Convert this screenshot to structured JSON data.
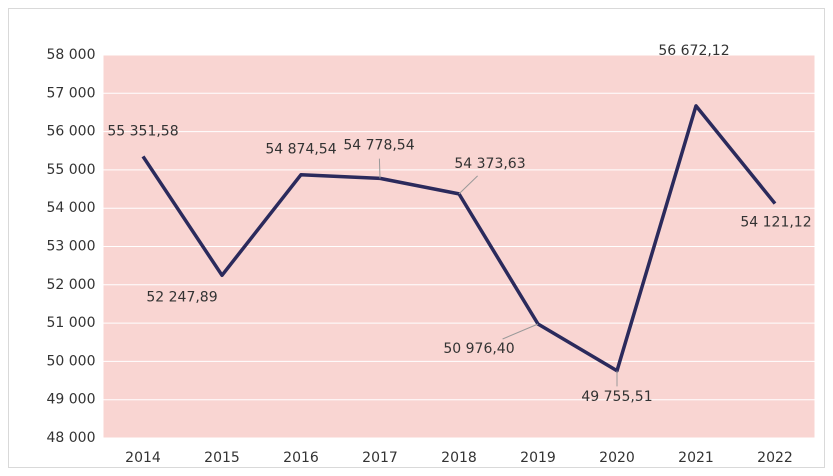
{
  "chart_data": {
    "type": "line",
    "categories": [
      "2014",
      "2015",
      "2016",
      "2017",
      "2018",
      "2019",
      "2020",
      "2021",
      "2022"
    ],
    "series": [
      {
        "name": "Value",
        "color": "#2b2a5c",
        "values": [
          55351.58,
          52247.89,
          54874.54,
          54778.54,
          54373.63,
          50976.4,
          49755.51,
          56672.12,
          54121.12
        ],
        "value_labels": [
          "55 351,58",
          "52 247,89",
          "54 874,54",
          "54 778,54",
          "54 373,63",
          "50 976,40",
          "49 755,51",
          "56 672,12",
          "54 121,12"
        ]
      }
    ],
    "ylim": [
      48000,
      58000
    ],
    "yticks": [
      {
        "value": 48000,
        "label": "48 000"
      },
      {
        "value": 49000,
        "label": "49 000"
      },
      {
        "value": 50000,
        "label": "50 000"
      },
      {
        "value": 51000,
        "label": "51 000"
      },
      {
        "value": 52000,
        "label": "52 000"
      },
      {
        "value": 53000,
        "label": "53 000"
      },
      {
        "value": 54000,
        "label": "54 000"
      },
      {
        "value": 55000,
        "label": "55 000"
      },
      {
        "value": 56000,
        "label": "56 000"
      },
      {
        "value": 57000,
        "label": "57 000"
      },
      {
        "value": 58000,
        "label": "58 000"
      }
    ],
    "grid": true,
    "background": "#f9d5d2"
  }
}
